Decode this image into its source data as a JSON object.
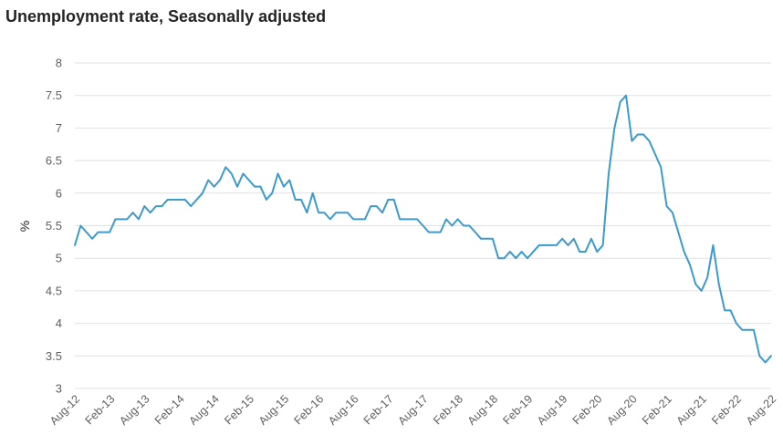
{
  "chart_data": {
    "type": "line",
    "title": "Unemployment rate, Seasonally adjusted",
    "xlabel": "",
    "ylabel": "%",
    "ylim": [
      3,
      8
    ],
    "yticks": [
      "3",
      "3.5",
      "4",
      "4.5",
      "5",
      "5.5",
      "6",
      "6.5",
      "7",
      "7.5",
      "8"
    ],
    "x_tick_labels": [
      "Aug-12",
      "Feb-13",
      "Aug-13",
      "Feb-14",
      "Aug-14",
      "Feb-15",
      "Aug-15",
      "Feb-16",
      "Aug-16",
      "Feb-17",
      "Aug-17",
      "Feb-18",
      "Aug-18",
      "Feb-19",
      "Aug-19",
      "Feb-20",
      "Aug-20",
      "Feb-21",
      "Aug-21",
      "Feb-22",
      "Aug-22"
    ],
    "x_start": "Aug-12",
    "x_end": "Sep-22",
    "grid": true,
    "series": [
      {
        "name": "Unemployment rate",
        "color": "#3a9bcc",
        "values": [
          5.2,
          5.5,
          5.4,
          5.3,
          5.4,
          5.4,
          5.4,
          5.6,
          5.6,
          5.6,
          5.7,
          5.6,
          5.8,
          5.7,
          5.8,
          5.8,
          5.9,
          5.9,
          5.9,
          5.9,
          5.8,
          5.9,
          6.0,
          6.2,
          6.1,
          6.2,
          6.4,
          6.3,
          6.1,
          6.3,
          6.2,
          6.1,
          6.1,
          5.9,
          6.0,
          6.3,
          6.1,
          6.2,
          5.9,
          5.9,
          5.7,
          6.0,
          5.7,
          5.7,
          5.6,
          5.7,
          5.7,
          5.7,
          5.6,
          5.6,
          5.6,
          5.8,
          5.8,
          5.7,
          5.9,
          5.9,
          5.6,
          5.6,
          5.6,
          5.6,
          5.5,
          5.4,
          5.4,
          5.4,
          5.6,
          5.5,
          5.6,
          5.5,
          5.5,
          5.4,
          5.3,
          5.3,
          5.3,
          5.0,
          5.0,
          5.1,
          5.0,
          5.1,
          5.0,
          5.1,
          5.2,
          5.2,
          5.2,
          5.2,
          5.3,
          5.2,
          5.3,
          5.1,
          5.1,
          5.3,
          5.1,
          5.2,
          6.3,
          7.0,
          7.4,
          7.5,
          6.8,
          6.9,
          6.9,
          6.8,
          6.6,
          6.4,
          5.8,
          5.7,
          5.4,
          5.1,
          4.9,
          4.6,
          4.5,
          4.7,
          5.2,
          4.6,
          4.2,
          4.2,
          4.0,
          3.9,
          3.9,
          3.9,
          3.5,
          3.4,
          3.5
        ]
      }
    ]
  }
}
